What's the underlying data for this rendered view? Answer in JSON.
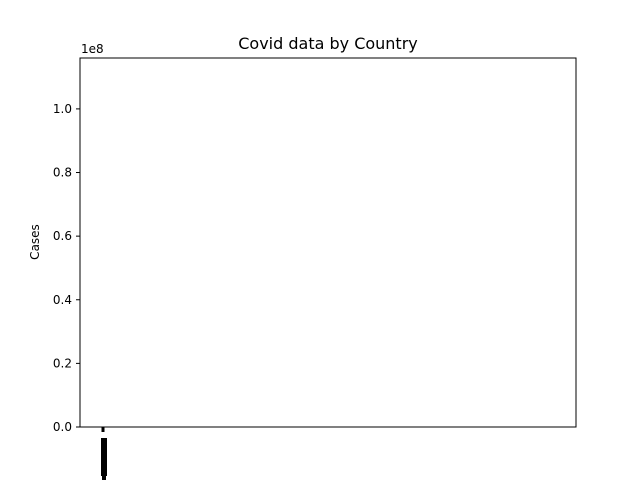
{
  "chart_data": {
    "type": "bar",
    "title": "Covid data by Country",
    "xlabel": "",
    "ylabel": "Cases",
    "y_offset_label": "1e8",
    "ylim": [
      0,
      1.16
    ],
    "y_ticks": [
      0.0,
      0.2,
      0.4,
      0.6,
      0.8,
      1.0
    ],
    "y_tick_labels": [
      "0.0",
      "0.2",
      "0.4",
      "0.6",
      "0.8",
      "1.0"
    ],
    "grid": false,
    "categories": [],
    "values": [],
    "x_tick_labels_note": "dense overlapping x tick labels rendered as a solid black block under the left axis"
  }
}
